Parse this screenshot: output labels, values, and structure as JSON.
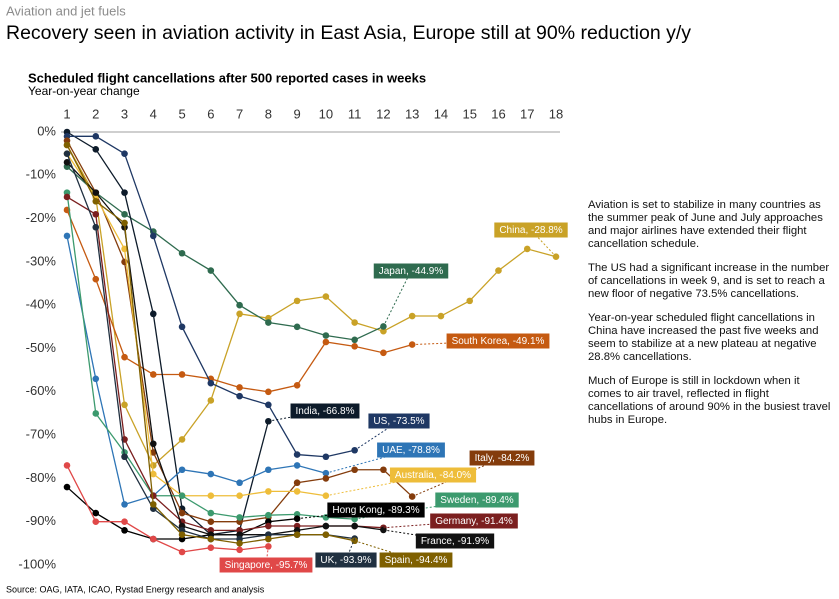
{
  "header": "Aviation and jet fuels",
  "headline": "Recovery seen in aviation activity in East Asia, Europe still at 90% reduction y/y",
  "source": "Source: OAG, IATA, ICAO, Rystad Energy research and analysis",
  "notes": [
    "Aviation is set to stabilize in many countries as the summer peak of June and July approaches and major airlines have extended their flight cancellation schedule.",
    "The US had a significant increase in the number of cancellations in week 9, and is set to reach a new floor of negative 73.5% cancellations.",
    "Year-on-year scheduled flight cancellations in China have increased the past five weeks and seem to stabilize at a new plateau at negative 28.8% cancellations.",
    "Much of Europe is still in lockdown when it comes to air travel, reflected in flight cancellations of around 90% in the busiest travel hubs in Europe."
  ],
  "chart_data": {
    "type": "line",
    "title": "Scheduled flight cancellations after 500 reported cases in weeks",
    "subtitle": "Year-on-year change",
    "x": [
      1,
      2,
      3,
      4,
      5,
      6,
      7,
      8,
      9,
      10,
      11,
      12,
      13,
      14,
      15,
      16,
      17,
      18
    ],
    "xlim": [
      1,
      18
    ],
    "xticks": [
      1,
      2,
      3,
      4,
      5,
      6,
      7,
      8,
      9,
      10,
      11,
      12,
      13,
      14,
      15,
      16,
      17,
      18
    ],
    "ylim": [
      -100,
      0
    ],
    "yticks": [
      {
        "value": 0,
        "label": "0%"
      },
      {
        "value": -10,
        "label": "-10%"
      },
      {
        "value": -20,
        "label": "-20%"
      },
      {
        "value": -30,
        "label": "-30%"
      },
      {
        "value": -40,
        "label": "-40%"
      },
      {
        "value": -50,
        "label": "-50%"
      },
      {
        "value": -60,
        "label": "-60%"
      },
      {
        "value": -70,
        "label": "-70%"
      },
      {
        "value": -80,
        "label": "-80%"
      },
      {
        "value": -90,
        "label": "-90%"
      },
      {
        "value": -100,
        "label": "-100%"
      }
    ],
    "grid": false,
    "series": [
      {
        "name": "China",
        "color": "#c9a227",
        "values": [
          -3,
          -15,
          -63,
          -77,
          -71,
          -62,
          -42,
          -43,
          -39,
          -38,
          -44,
          -46,
          -42.5,
          -42.5,
          -39,
          -32,
          -27,
          -28.8
        ],
        "value_labels": [
          null,
          null,
          null,
          null,
          null,
          null,
          null,
          null,
          null,
          null,
          null,
          null,
          null,
          null,
          null,
          null,
          null,
          "China, -28.8%"
        ]
      },
      {
        "name": "Japan",
        "color": "#2f6b4f",
        "values": [
          -8,
          -14,
          -19,
          -23,
          -28,
          -32,
          -40,
          -44,
          -45,
          -47,
          -48,
          -44.9,
          null,
          null,
          null,
          null,
          null,
          null
        ],
        "value_labels": [
          null,
          null,
          null,
          null,
          null,
          null,
          null,
          null,
          null,
          null,
          null,
          "Japan, -44.9%",
          null,
          null,
          null,
          null,
          null,
          null
        ]
      },
      {
        "name": "South Korea",
        "color": "#c55a11",
        "values": [
          -18,
          -34,
          -52,
          -56,
          -56,
          -57,
          -59,
          -60,
          -58.5,
          -48.5,
          -49.5,
          -51,
          -49.1,
          null,
          null,
          null,
          null,
          null
        ],
        "value_labels": [
          null,
          null,
          null,
          null,
          null,
          null,
          null,
          null,
          null,
          null,
          null,
          null,
          "South Korea, -49.1%",
          null,
          null,
          null,
          null,
          null
        ]
      },
      {
        "name": "India",
        "color": "#0d1b2a",
        "values": [
          0,
          -4,
          -14,
          -42,
          -87,
          -93,
          -92,
          -66.8,
          null,
          null,
          null,
          null,
          null,
          null,
          null,
          null,
          null,
          null
        ],
        "value_labels": [
          null,
          null,
          null,
          null,
          null,
          null,
          null,
          "India, -66.8%",
          null,
          null,
          null,
          null,
          null,
          null,
          null,
          null,
          null,
          null
        ]
      },
      {
        "name": "US",
        "color": "#1f3864",
        "values": [
          -1,
          -1,
          -5,
          -24,
          -45,
          -58,
          -61,
          -63,
          -74.5,
          -75,
          -73.5,
          null,
          null,
          null,
          null,
          null,
          null,
          null
        ],
        "value_labels": [
          null,
          null,
          null,
          null,
          null,
          null,
          null,
          null,
          null,
          null,
          "US, -73.5%",
          null,
          null,
          null,
          null,
          null,
          null,
          null
        ]
      },
      {
        "name": "UAE",
        "color": "#2e75b6",
        "values": [
          -24,
          -57,
          -86,
          -84,
          -78,
          -79,
          -81,
          -78,
          -77,
          -78.8,
          null,
          null,
          null,
          null,
          null,
          null,
          null,
          null
        ],
        "value_labels": [
          null,
          null,
          null,
          null,
          null,
          null,
          null,
          null,
          null,
          "UAE, -78.8%",
          null,
          null,
          null,
          null,
          null,
          null,
          null,
          null
        ]
      },
      {
        "name": "Italy",
        "color": "#843c0c",
        "values": [
          -2,
          -14,
          -30,
          -74,
          -88,
          -90,
          -90,
          -89,
          -81,
          -80,
          -78,
          -78,
          -84.2,
          null,
          null,
          null,
          null,
          null
        ],
        "value_labels": [
          null,
          null,
          null,
          null,
          null,
          null,
          null,
          null,
          null,
          null,
          null,
          null,
          "Italy, -84.2%",
          null,
          null,
          null,
          null,
          null
        ]
      },
      {
        "name": "Australia",
        "color": "#eebd3a",
        "values": [
          -5,
          -15,
          -27,
          -79,
          -84,
          -84,
          -84,
          -83,
          -83,
          -84.0,
          null,
          null,
          null,
          null,
          null,
          null,
          null,
          null
        ],
        "value_labels": [
          null,
          null,
          null,
          null,
          null,
          null,
          null,
          null,
          null,
          "Australia, -84.0%",
          null,
          null,
          null,
          null,
          null,
          null,
          null,
          null
        ]
      },
      {
        "name": "Sweden",
        "color": "#3c9a6e",
        "values": [
          -14,
          -65,
          -74,
          -84,
          -84,
          -88,
          -89,
          -88.5,
          -88.3,
          -89,
          -89.4,
          null,
          null,
          null,
          null,
          null,
          null,
          null
        ],
        "value_labels": [
          null,
          null,
          null,
          null,
          null,
          null,
          null,
          null,
          null,
          null,
          "Sweden, -89.4%",
          null,
          null,
          null,
          null,
          null,
          null,
          null
        ]
      },
      {
        "name": "Hong Kong",
        "color": "#000000",
        "values": [
          -82,
          -88,
          -92,
          -94,
          -94,
          -93,
          -93,
          -90,
          -89.3,
          null,
          null,
          null,
          null,
          null,
          null,
          null,
          null,
          null
        ],
        "value_labels": [
          null,
          null,
          null,
          null,
          null,
          null,
          null,
          null,
          "Hong Kong, -89.3%",
          null,
          null,
          null,
          null,
          null,
          null,
          null,
          null,
          null
        ]
      },
      {
        "name": "Germany",
        "color": "#7b1f1f",
        "values": [
          -15,
          -19,
          -71,
          -84,
          -90,
          -92,
          -92,
          -91,
          -91,
          -91,
          -91,
          -91.4,
          null,
          null,
          null,
          null,
          null,
          null
        ],
        "value_labels": [
          null,
          null,
          null,
          null,
          null,
          null,
          null,
          null,
          null,
          null,
          null,
          "Germany, -91.4%",
          null,
          null,
          null,
          null,
          null,
          null
        ]
      },
      {
        "name": "France",
        "color": "#111111",
        "values": [
          -7,
          -14,
          -22,
          -72,
          -91,
          -93,
          -93,
          -93,
          -92,
          -91,
          -91,
          -91.9,
          null,
          null,
          null,
          null,
          null,
          null
        ],
        "value_labels": [
          null,
          null,
          null,
          null,
          null,
          null,
          null,
          null,
          null,
          null,
          null,
          "France, -91.9%",
          null,
          null,
          null,
          null,
          null,
          null
        ]
      },
      {
        "name": "Singapore",
        "color": "#e04848",
        "values": [
          -77,
          -90,
          -90,
          -94,
          -97,
          -96,
          -96.5,
          -95.7,
          null,
          null,
          null,
          null,
          null,
          null,
          null,
          null,
          null,
          null
        ],
        "value_labels": [
          null,
          null,
          null,
          null,
          null,
          null,
          null,
          "Singapore, -95.7%",
          null,
          null,
          null,
          null,
          null,
          null,
          null,
          null,
          null,
          null
        ]
      },
      {
        "name": "UK",
        "color": "#203040",
        "values": [
          -5,
          -22,
          -75,
          -87,
          -92,
          -94,
          -94,
          -93,
          -93,
          -93,
          -93.9,
          null,
          null,
          null,
          null,
          null,
          null,
          null
        ],
        "value_labels": [
          null,
          null,
          null,
          null,
          null,
          null,
          null,
          null,
          null,
          null,
          "UK, -93.9%",
          null,
          null,
          null,
          null,
          null,
          null,
          null
        ]
      },
      {
        "name": "Spain",
        "color": "#7f6000",
        "values": [
          -3,
          -16,
          -21,
          -86,
          -93,
          -94,
          -95,
          -94,
          -93,
          -93,
          -94.4,
          null,
          null,
          null,
          null,
          null,
          null,
          null
        ],
        "value_labels": [
          null,
          null,
          null,
          null,
          null,
          null,
          null,
          null,
          null,
          null,
          "Spain, -94.4%",
          null,
          null,
          null,
          null,
          null,
          null,
          null
        ]
      }
    ]
  }
}
